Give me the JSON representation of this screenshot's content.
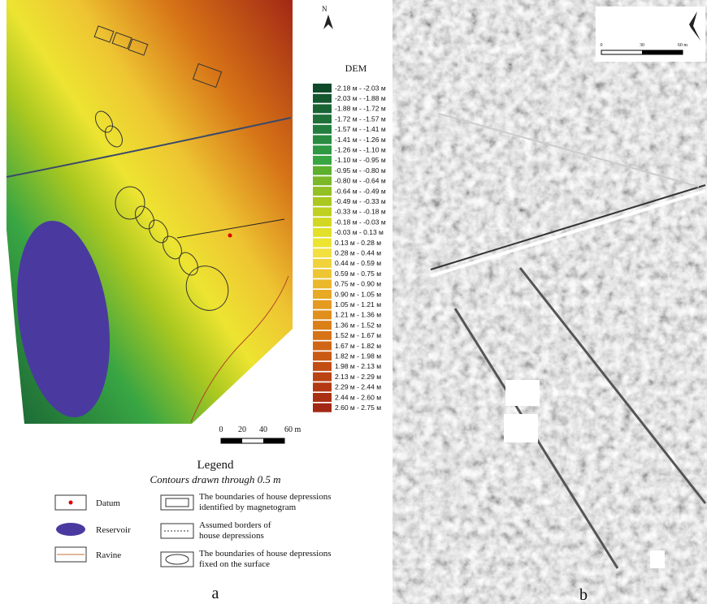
{
  "panel_a": {
    "north": "N",
    "dem_title": "DEM",
    "dem_classes": [
      {
        "label": "-2.18 м -  -2.03 м",
        "color": "#0f4a2a"
      },
      {
        "label": "-2.03 м -  -1.88 м",
        "color": "#15572f"
      },
      {
        "label": "-1.88 м -  -1.72 м",
        "color": "#1a6434"
      },
      {
        "label": "-1.72 м -  -1.57 м",
        "color": "#1f7139"
      },
      {
        "label": "-1.57 м -  -1.41 м",
        "color": "#237e3e"
      },
      {
        "label": "-1.41 м -  -1.26 м",
        "color": "#288b40"
      },
      {
        "label": "-1.26 м -  -1.10 м",
        "color": "#2e9842"
      },
      {
        "label": "-1.10 м -  -0.95 м",
        "color": "#38a543"
      },
      {
        "label": "-0.95 м -  -0.80 м",
        "color": "#5cb02e"
      },
      {
        "label": "-0.80 м -  -0.64 м",
        "color": "#7ab828"
      },
      {
        "label": "-0.64 м -  -0.49 м",
        "color": "#93c024"
      },
      {
        "label": "-0.49 м -  -0.33 м",
        "color": "#aac820"
      },
      {
        "label": "-0.33 м -  -0.18 м",
        "color": "#bfd020"
      },
      {
        "label": "-0.18 м -  -0.03 м",
        "color": "#d2d822"
      },
      {
        "label": "-0.03 м -  0.13 м",
        "color": "#e2e028"
      },
      {
        "label": "0.13 м -  0.28 м",
        "color": "#ede431"
      },
      {
        "label": "0.28 м -  0.44 м",
        "color": "#f2e040"
      },
      {
        "label": "0.44 м -  0.59 м",
        "color": "#f0d33a"
      },
      {
        "label": "0.59 м -  0.75 м",
        "color": "#eec532"
      },
      {
        "label": "0.75 м -  0.90 м",
        "color": "#ebb72b"
      },
      {
        "label": "0.90 м -  1.05 м",
        "color": "#e8a925"
      },
      {
        "label": "1.05 м -  1.21 м",
        "color": "#e59b20"
      },
      {
        "label": "1.21 м -  1.36 м",
        "color": "#e08e1c"
      },
      {
        "label": "1.36 м -  1.52 м",
        "color": "#db8019"
      },
      {
        "label": "1.52 м -  1.67 м",
        "color": "#d67317"
      },
      {
        "label": "1.67 м -  1.82 м",
        "color": "#d06615"
      },
      {
        "label": "1.82 м -  1.98 м",
        "color": "#c95a14"
      },
      {
        "label": "1.98 м -  2.13 м",
        "color": "#c24e13"
      },
      {
        "label": "2.13 м -  2.29 м",
        "color": "#ba4313"
      },
      {
        "label": "2.29 м -  2.44 м",
        "color": "#b23913"
      },
      {
        "label": "2.44 м -  2.60 м",
        "color": "#aa3014"
      },
      {
        "label": "2.60 м -  2.75 м",
        "color": "#a22815"
      }
    ],
    "scale_labels": [
      "0",
      "20",
      "40",
      "60 m"
    ],
    "legend": {
      "title": "Legend",
      "subtitle": "Contours drawn through 0.5 m",
      "left_items": [
        "Datum",
        "Reservoir",
        "Ravine"
      ],
      "right_items": [
        [
          "The boundaries of house depressions",
          "identified by magnetogram"
        ],
        [
          "Assumed borders of",
          "house depressions"
        ],
        [
          "The boundaries of house depressions",
          "fixed on the surface"
        ]
      ]
    },
    "label": "a"
  },
  "panel_b": {
    "scale_labels": [
      "0",
      "30",
      "60 m"
    ],
    "label": "b"
  }
}
